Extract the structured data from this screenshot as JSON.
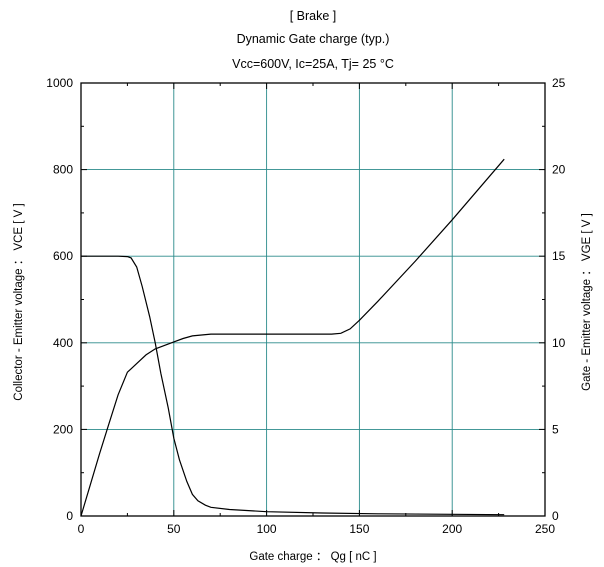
{
  "chart_data": {
    "type": "line",
    "title_lines": [
      "[ Brake ]",
      "Dynamic Gate charge  (typ.)",
      "Vcc=600V, Ic=25A, Tj= 25  °C"
    ],
    "xlabel": "Gate charge ： Qg  [ nC ]",
    "ylabel_left": "Collector - Emitter voltage ： VCE  [ V ]",
    "ylabel_right": "Gate - Emitter voltage ： VGE  [ V ]",
    "xlim": [
      0,
      250
    ],
    "ylim_left": [
      0,
      1000
    ],
    "ylim_right": [
      0,
      25
    ],
    "x_ticks": [
      0,
      50,
      100,
      150,
      200,
      250
    ],
    "y_left_ticks": [
      0,
      200,
      400,
      600,
      800,
      1000
    ],
    "y_right_ticks": [
      0,
      5,
      10,
      15,
      20,
      25
    ],
    "grid": true,
    "series": [
      {
        "axis": "left",
        "x": [
          0,
          20,
          25,
          27,
          30,
          33,
          37,
          40,
          43,
          47,
          50,
          53,
          57,
          60,
          63,
          67,
          70,
          80,
          100,
          130,
          160,
          200,
          228
        ],
        "y": [
          600,
          600,
          599,
          596,
          575,
          530,
          460,
          400,
          330,
          250,
          180,
          130,
          80,
          50,
          35,
          25,
          20,
          15,
          10,
          7,
          5,
          4,
          3
        ]
      },
      {
        "axis": "right",
        "x": [
          0,
          5,
          10,
          15,
          20,
          25,
          27,
          30,
          35,
          40,
          45,
          50,
          55,
          60,
          65,
          70,
          80,
          100,
          120,
          135,
          140,
          145,
          150,
          160,
          180,
          200,
          228
        ],
        "y": [
          0,
          1.8,
          3.6,
          5.3,
          7.0,
          8.3,
          8.5,
          8.8,
          9.3,
          9.65,
          9.85,
          10.05,
          10.25,
          10.4,
          10.45,
          10.5,
          10.5,
          10.5,
          10.5,
          10.5,
          10.55,
          10.8,
          11.3,
          12.4,
          14.7,
          17.1,
          20.6
        ]
      }
    ]
  }
}
